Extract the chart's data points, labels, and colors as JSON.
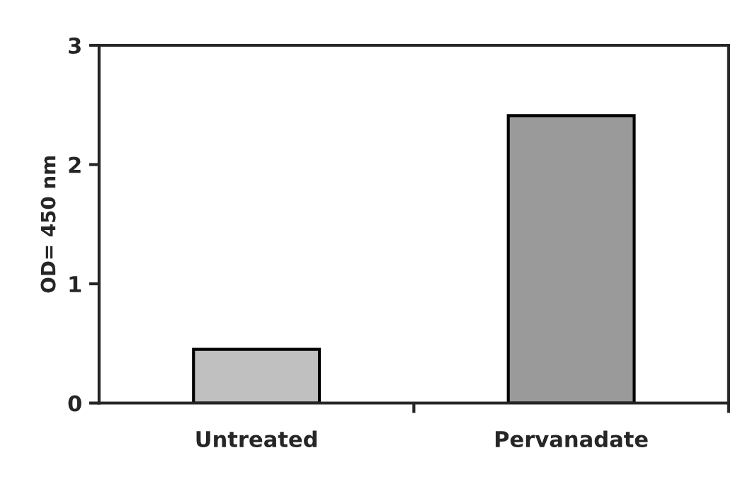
{
  "chart_data": {
    "type": "bar",
    "ylabel": "OD= 450 nm",
    "categories": [
      "Untreated",
      "Pervanadate"
    ],
    "values": [
      0.45,
      2.41
    ],
    "colors": [
      "#c0c0c0",
      "#9a9a9a"
    ],
    "ylim": [
      0,
      3
    ],
    "yticks": [
      0,
      1,
      2,
      3
    ],
    "grid": false
  }
}
